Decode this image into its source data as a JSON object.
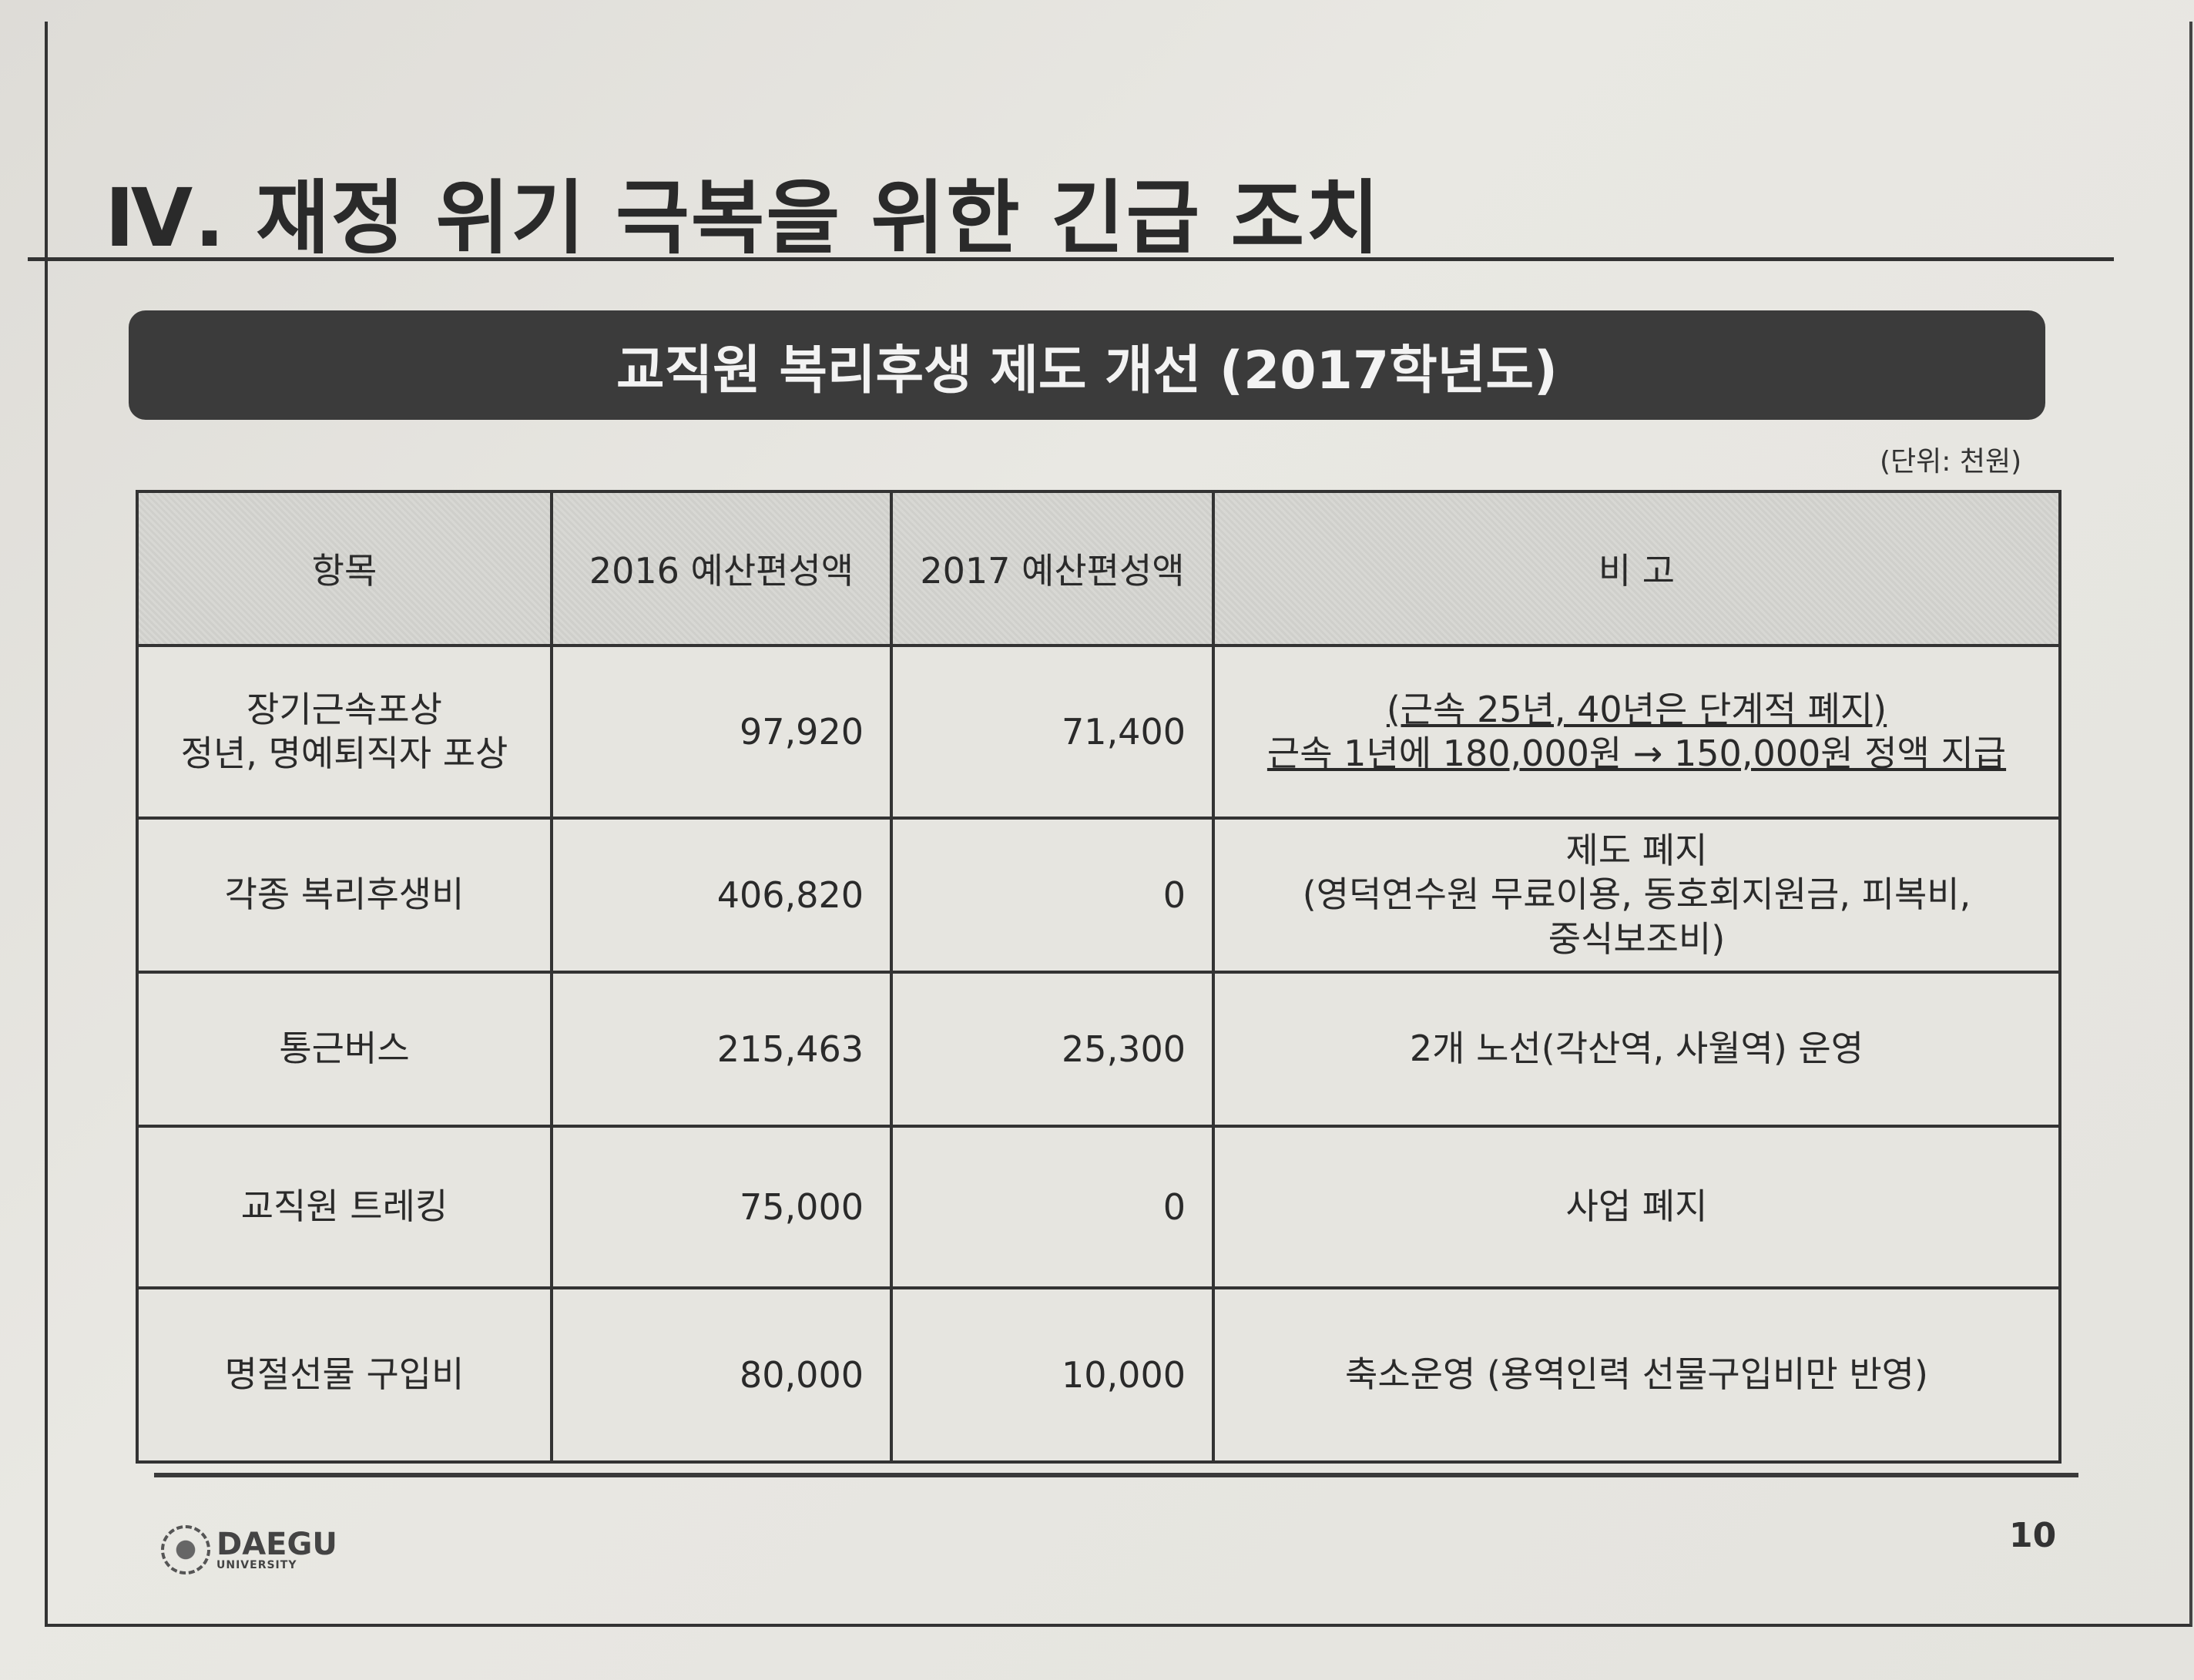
{
  "title": "Ⅳ. 재정 위기 극복을 위한 긴급 조치",
  "banner": "교직원 복리후생 제도 개선 (2017학년도)",
  "unit": "(단위: 천원)",
  "table": {
    "headers": [
      "항목",
      "2016 예산편성액",
      "2017 예산편성액",
      "비  고"
    ],
    "rows": [
      {
        "item": [
          "장기근속포상",
          "정년, 명예퇴직자 포상"
        ],
        "y2016": "97,920",
        "y2017": "71,400",
        "note": [
          "(근속 25년, 40년은 단계적 폐지)",
          "근속 1년에  180,000원 → 150,000원 정액 지급"
        ],
        "note_underlined": true
      },
      {
        "item": [
          "각종 복리후생비"
        ],
        "y2016": "406,820",
        "y2017": "0",
        "note": [
          "제도 폐지",
          "(영덕연수원 무료이용, 동호회지원금, 피복비,",
          "중식보조비)"
        ]
      },
      {
        "item": [
          "통근버스"
        ],
        "y2016": "215,463",
        "y2017": "25,300",
        "note": [
          "2개 노선(각산역, 사월역) 운영"
        ]
      },
      {
        "item": [
          "교직원 트레킹"
        ],
        "y2016": "75,000",
        "y2017": "0",
        "note": [
          "사업 폐지"
        ]
      },
      {
        "item": [
          "명절선물 구입비"
        ],
        "y2016": "80,000",
        "y2017": "10,000",
        "note": [
          "축소운영 (용역인력 선물구입비만 반영)"
        ]
      }
    ]
  },
  "footer": {
    "logo": "DAEGU UNIVERSITY",
    "logo_main": "DAEGU",
    "logo_sub": "UNIVERSITY",
    "page": "10"
  }
}
